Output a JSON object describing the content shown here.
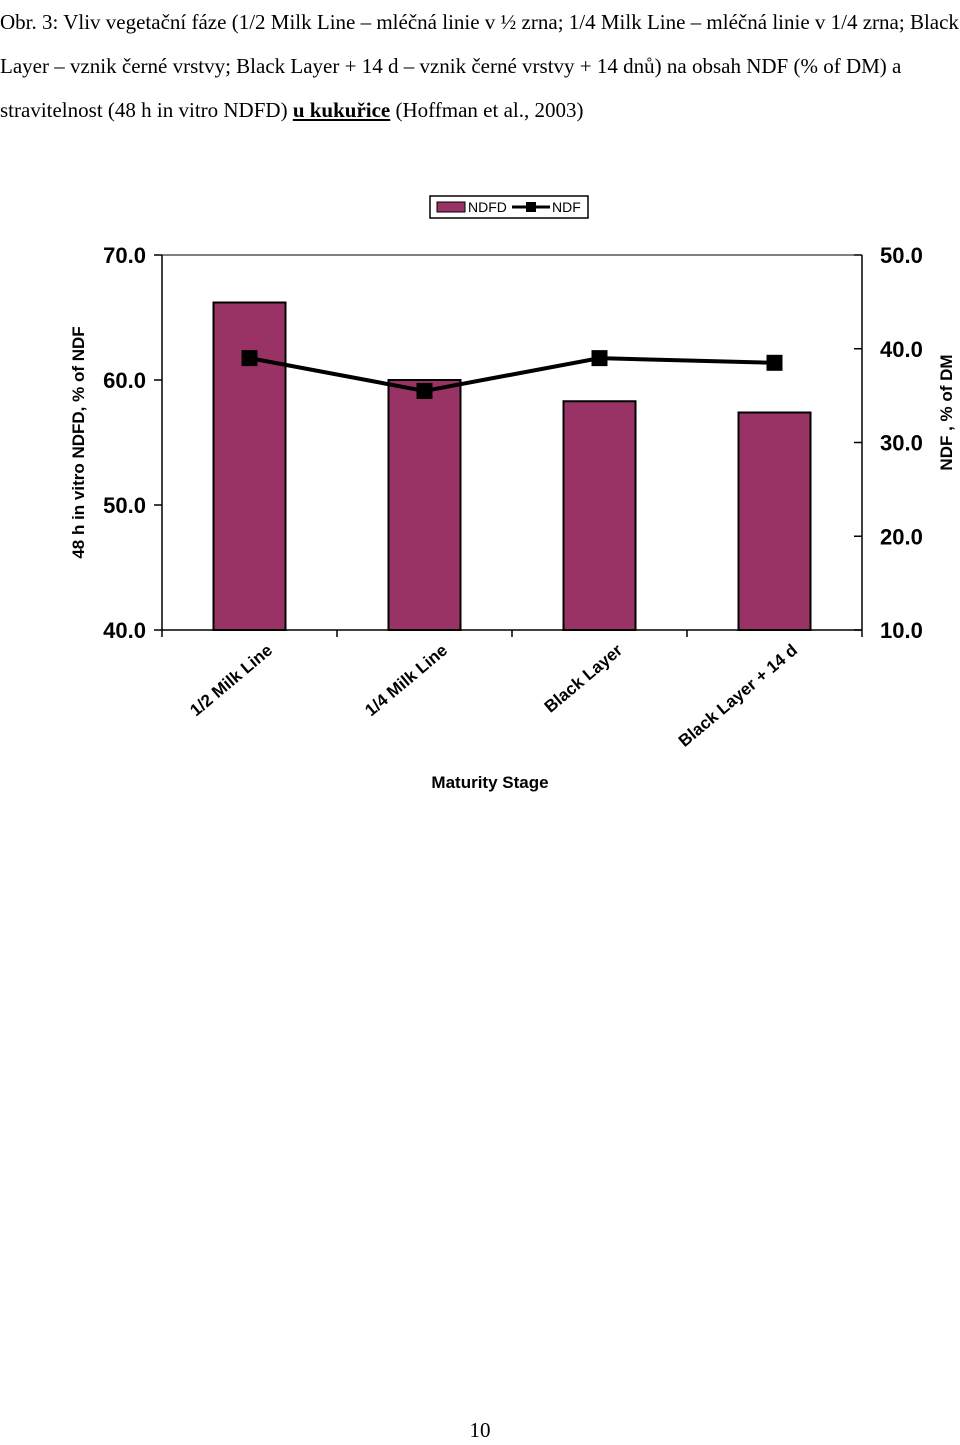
{
  "caption": {
    "text": "Obr. 3: Vliv vegetační fáze (1/2 Milk Line – mléčná linie v ½ zrna; 1/4 Milk Line – mléčná linie v 1/4 zrna; Black Layer – vznik černé vrstvy; Black Layer + 14 d – vznik černé vrstvy + 14 dnů) na obsah NDF (% of DM) a stravitelnost (48 h in vitro NDFD) ",
    "underlined": "u kukuřice",
    "tail": " (Hoffman et al., 2003)"
  },
  "colors": {
    "bar": "#993366",
    "line": "#000000"
  },
  "chart_data": {
    "type": "bar",
    "categories": [
      "1/2 Milk Line",
      "1/4 Milk Line",
      "Black Layer",
      "Black Layer + 14 d"
    ],
    "series": [
      {
        "name": "NDFD",
        "type": "bar",
        "axis": "left",
        "values": [
          66.2,
          60.0,
          58.3,
          57.4
        ]
      },
      {
        "name": "NDF",
        "type": "line",
        "axis": "right",
        "values": [
          39.0,
          35.5,
          39.0,
          38.5
        ]
      }
    ],
    "xlabel": "Maturity Stage",
    "ylabel": "48 h in vitro NDFD, % of NDF",
    "ylabel_right": "NDF , % of DM",
    "ylim": [
      40,
      70
    ],
    "ylim_right": [
      10,
      50
    ],
    "yticks": [
      "40.0",
      "50.0",
      "60.0",
      "70.0"
    ],
    "yticks_right": [
      "10.0",
      "20.0",
      "30.0",
      "40.0",
      "50.0"
    ],
    "legend": "top-center",
    "grid": false
  },
  "page_number": "10"
}
